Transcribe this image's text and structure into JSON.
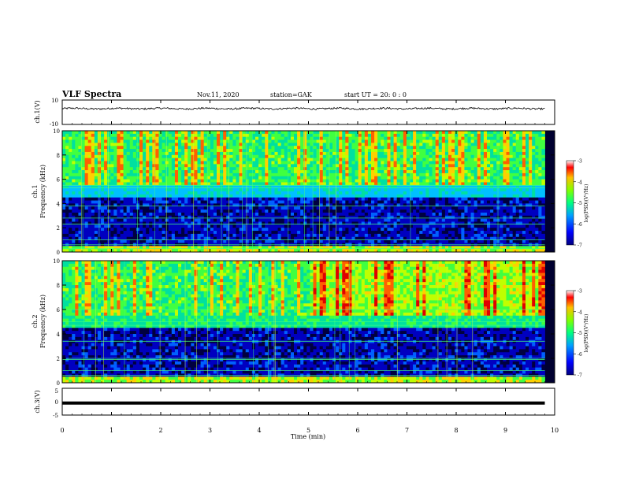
{
  "header": {
    "title": "VLF Spectra",
    "date": "Nov.11, 2020",
    "station": "station=GAK",
    "start": "start UT =  20: 0  : 0"
  },
  "colors": {
    "colormap": [
      "#000040",
      "#0000c0",
      "#0060ff",
      "#00c0ff",
      "#00e0a0",
      "#40ff40",
      "#c0ff00",
      "#ffd000",
      "#ff6000",
      "#e00000",
      "#ffffff"
    ],
    "trace": "#000000"
  },
  "chart_data": [
    {
      "type": "line",
      "panel": "ch1",
      "ylabel": "ch.1(V)",
      "ylim": [
        -10,
        10
      ],
      "yticks": [
        "10",
        "-10"
      ],
      "description_values": "waveform trace near +3 V with small fluctuations",
      "x": [
        0,
        1,
        2,
        3,
        4,
        5,
        6,
        7,
        8,
        9,
        9.8
      ],
      "y": [
        3,
        2.8,
        3.1,
        2.9,
        3.0,
        2.7,
        3.0,
        3.2,
        2.9,
        3.0,
        3.1
      ]
    },
    {
      "type": "heatmap",
      "panel": "ch1-spectrogram",
      "ylabel_top": "ch.1",
      "ylabel": "Frequency (kHz)",
      "ylim": [
        0,
        10
      ],
      "yticks": [
        "0",
        "2",
        "4",
        "6",
        "8",
        "10"
      ],
      "colorbar": {
        "label": "log(PSD)(V²/Hz)",
        "range": [
          -7,
          -3
        ],
        "ticks": [
          "-3",
          "-4",
          "-5",
          "-6",
          "-7"
        ]
      }
    },
    {
      "type": "heatmap",
      "panel": "ch2-spectrogram",
      "ylabel_top": "ch.2",
      "ylabel": "Frequency (kHz)",
      "ylim": [
        0,
        10
      ],
      "yticks": [
        "0",
        "2",
        "4",
        "6",
        "8",
        "10"
      ],
      "colorbar": {
        "label": "log(PSD)(V²/Hz)",
        "range": [
          -7,
          -3
        ],
        "ticks": [
          "-3",
          "-4",
          "-5",
          "-6",
          "-7"
        ]
      }
    },
    {
      "type": "line",
      "panel": "ch3",
      "ylabel": "ch.3(V)",
      "ylim": [
        -5,
        5
      ],
      "yticks": [
        "5",
        "0",
        "-5"
      ],
      "x": [
        0,
        9.8
      ],
      "y": [
        -0.5,
        -0.5
      ]
    }
  ],
  "xaxis": {
    "label": "Time (min)",
    "range": [
      0,
      10
    ],
    "ticks": [
      "0",
      "1",
      "2",
      "3",
      "4",
      "5",
      "6",
      "7",
      "8",
      "9",
      "10"
    ]
  }
}
